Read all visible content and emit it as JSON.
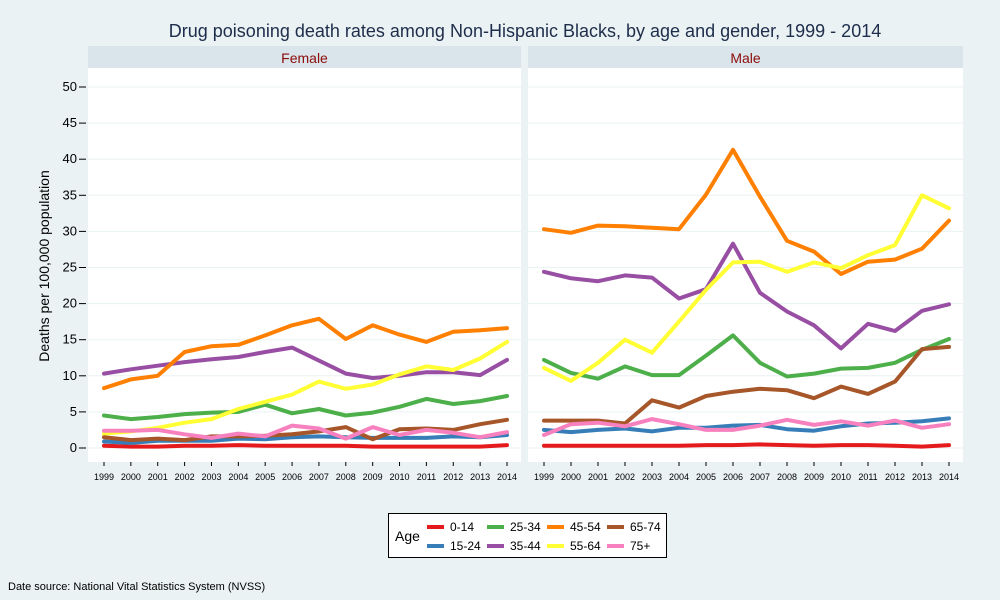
{
  "chart_data": {
    "type": "line",
    "title": "Drug poisoning death rates among Non-Hispanic Blacks, by age and gender, 1999 - 2014",
    "ylabel": "Deaths per 100,000 population",
    "ylim": [
      0,
      50
    ],
    "yticks": [
      0,
      5,
      10,
      15,
      20,
      25,
      30,
      35,
      40,
      45,
      50
    ],
    "x": [
      "1999",
      "2000",
      "2001",
      "2002",
      "2003",
      "2004",
      "2005",
      "2006",
      "2007",
      "2008",
      "2009",
      "2010",
      "2011",
      "2012",
      "2013",
      "2014"
    ],
    "grid": true,
    "legend_position": "bottom",
    "legend_title": "Age",
    "colors": {
      "0-14": "#e41a1c",
      "15-24": "#377eb8",
      "25-34": "#4daf4a",
      "35-44": "#984ea3",
      "45-54": "#ff7f00",
      "55-64": "#ffff33",
      "65-74": "#a65628",
      "75+": "#f781bf"
    },
    "panels": [
      {
        "name": "Female",
        "series": [
          {
            "name": "0-14",
            "values": [
              0.3,
              0.2,
              0.2,
              0.3,
              0.3,
              0.4,
              0.3,
              0.3,
              0.3,
              0.3,
              0.2,
              0.2,
              0.2,
              0.2,
              0.2,
              0.4
            ]
          },
          {
            "name": "15-24",
            "values": [
              0.9,
              0.7,
              1.0,
              1.0,
              1.0,
              1.3,
              1.2,
              1.5,
              1.6,
              1.5,
              1.4,
              1.4,
              1.4,
              1.6,
              1.5,
              1.8
            ]
          },
          {
            "name": "25-34",
            "values": [
              4.5,
              4.0,
              4.3,
              4.7,
              4.9,
              5.0,
              6.0,
              4.8,
              5.4,
              4.5,
              4.9,
              5.7,
              6.8,
              6.1,
              6.5,
              7.2
            ]
          },
          {
            "name": "35-44",
            "values": [
              10.3,
              10.9,
              11.4,
              11.9,
              12.3,
              12.6,
              13.3,
              13.9,
              12.1,
              10.3,
              9.7,
              10.0,
              10.5,
              10.5,
              10.1,
              12.2
            ]
          },
          {
            "name": "45-54",
            "values": [
              8.3,
              9.5,
              10.0,
              13.3,
              14.1,
              14.3,
              15.6,
              17.0,
              17.9,
              15.1,
              17.0,
              15.7,
              14.7,
              16.1,
              16.3,
              16.6
            ]
          },
          {
            "name": "55-64",
            "values": [
              2.0,
              2.3,
              2.8,
              3.5,
              4.0,
              5.4,
              6.4,
              7.4,
              9.2,
              8.2,
              8.8,
              10.2,
              11.3,
              10.8,
              12.4,
              14.7
            ]
          },
          {
            "name": "65-74",
            "values": [
              1.5,
              1.1,
              1.3,
              1.1,
              1.6,
              1.6,
              1.7,
              1.9,
              2.3,
              2.9,
              1.2,
              2.6,
              2.7,
              2.5,
              3.3,
              3.9
            ]
          },
          {
            "name": "75+",
            "values": [
              2.4,
              2.4,
              2.5,
              1.9,
              1.4,
              2.0,
              1.6,
              3.1,
              2.7,
              1.3,
              2.9,
              1.8,
              2.5,
              2.1,
              1.5,
              2.2
            ]
          }
        ]
      },
      {
        "name": "Male",
        "series": [
          {
            "name": "0-14",
            "values": [
              0.3,
              0.3,
              0.3,
              0.3,
              0.3,
              0.3,
              0.4,
              0.4,
              0.5,
              0.4,
              0.3,
              0.4,
              0.4,
              0.3,
              0.2,
              0.4
            ]
          },
          {
            "name": "15-24",
            "values": [
              2.5,
              2.2,
              2.5,
              2.7,
              2.3,
              2.8,
              2.8,
              3.1,
              3.2,
              2.6,
              2.4,
              3.0,
              3.4,
              3.5,
              3.7,
              4.1
            ]
          },
          {
            "name": "25-34",
            "values": [
              12.2,
              10.4,
              9.6,
              11.3,
              10.1,
              10.1,
              12.8,
              15.6,
              11.8,
              9.9,
              10.3,
              11.0,
              11.1,
              11.8,
              13.6,
              15.1
            ]
          },
          {
            "name": "35-44",
            "values": [
              24.4,
              23.5,
              23.1,
              23.9,
              23.6,
              20.7,
              22.0,
              28.3,
              21.5,
              18.9,
              17.0,
              13.8,
              17.2,
              16.2,
              19.0,
              19.9
            ]
          },
          {
            "name": "45-54",
            "values": [
              30.3,
              29.8,
              30.8,
              30.7,
              30.5,
              30.3,
              35.1,
              41.3,
              34.8,
              28.7,
              27.2,
              24.1,
              25.8,
              26.1,
              27.6,
              31.5
            ]
          },
          {
            "name": "55-64",
            "values": [
              11.1,
              9.3,
              11.8,
              15.0,
              13.2,
              17.5,
              21.9,
              25.7,
              25.8,
              24.4,
              25.7,
              24.9,
              26.7,
              28.1,
              35.0,
              33.2
            ]
          },
          {
            "name": "65-74",
            "values": [
              3.8,
              3.8,
              3.8,
              3.4,
              6.6,
              5.6,
              7.2,
              7.8,
              8.2,
              8.0,
              6.9,
              8.5,
              7.5,
              9.2,
              13.7,
              14.0
            ]
          },
          {
            "name": "75+",
            "values": [
              1.8,
              3.3,
              3.5,
              3.0,
              4.0,
              3.3,
              2.5,
              2.5,
              3.1,
              3.9,
              3.2,
              3.7,
              3.1,
              3.8,
              2.8,
              3.3
            ]
          }
        ]
      }
    ]
  },
  "legend_entries": [
    {
      "label": "0-14",
      "color": "#e41a1c"
    },
    {
      "label": "25-34",
      "color": "#4daf4a"
    },
    {
      "label": "45-54",
      "color": "#ff7f00"
    },
    {
      "label": "65-74",
      "color": "#a65628"
    },
    {
      "label": "15-24",
      "color": "#377eb8"
    },
    {
      "label": "35-44",
      "color": "#984ea3"
    },
    {
      "label": "55-64",
      "color": "#ffff33"
    },
    {
      "label": "75+",
      "color": "#f781bf"
    }
  ],
  "footer": {
    "source": "Date source: National Vital Statistics System (NVSS)"
  }
}
